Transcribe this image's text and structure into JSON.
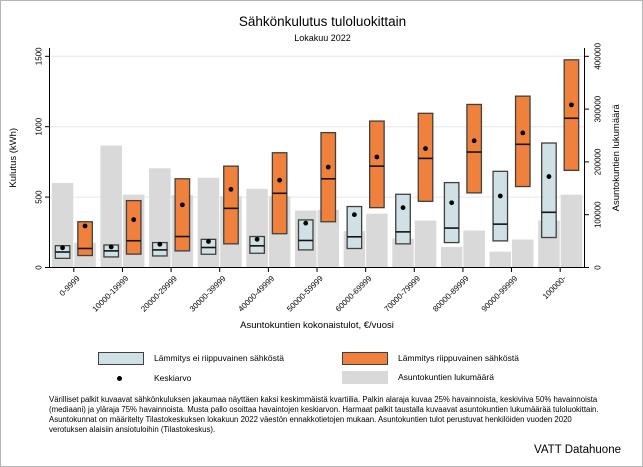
{
  "title": "Sähkönkulutus tuloluokittain",
  "subtitle": "Lokakuu 2022",
  "source_label": "VATT Datahuone",
  "footnote": "Värilliset palkit kuvaavat sähkönkuluksen jakaumaa näyttäen kaksi keskimmäistä kvartiilia. Palkin alaraja kuvaa 25% havainnoista, keskiviiva 50% havainnoista (mediaani) ja yläraja 75% havainnoista. Musta pallo osoittaa havaintojen keskiarvon. Harmaat palkit taustalla kuvaavat asuntokuntien lukumäärää tuloluokittain. Asuntokunnat on määritelty Tilastokeskuksen lokakuun 2022 väestön ennakkotietojen mukaan. Asuntokuntien tulot perustuvat henkilöiden vuoden 2020 verotuksen alaisiin ansiotuloihin (Tilastokeskus).",
  "legend": {
    "items": [
      {
        "label": "Lämmitys ei riippuvainen sähköstä",
        "swatch": "box-blue"
      },
      {
        "label": "Lämmitys riippuvainen sähköstä",
        "swatch": "box-orange"
      },
      {
        "label": "Keskiarvo",
        "swatch": "mean-dot"
      },
      {
        "label": "Asuntokuntien lukumäärä",
        "swatch": "bar-gray"
      }
    ]
  },
  "chart_data": {
    "type": "boxplot-with-background-bars",
    "title": "Sähkönkulutus tuloluokittain",
    "subtitle": "Lokakuu 2022",
    "xlabel": "Asuntokuntien kokonaistulot, €/vuosi",
    "ylabel_left": "Kulutus (kWh)",
    "ylabel_right": "Asuntokuntien lukumäärä",
    "ylim_left": [
      0,
      1500
    ],
    "yticks_left": [
      0,
      500,
      1000,
      1500
    ],
    "ylim_right": [
      0,
      400000
    ],
    "yticks_right": [
      0,
      100000,
      200000,
      300000,
      400000
    ],
    "gridlines_left": [
      500,
      1000,
      1500
    ],
    "legend_position": "bottom",
    "categories": [
      "0-9999",
      "10000-19999",
      "20000-29999",
      "30000-39999",
      "40000-49999",
      "50000-59999",
      "60000-69999",
      "70000-79999",
      "80000-89999",
      "90000-99999",
      "100000-"
    ],
    "series": [
      {
        "name": "Lämmitys ei riippuvainen sähköstä",
        "type": "box",
        "axis": "left",
        "fill": "#D0E1E5",
        "values": [
          {
            "p25": 65,
            "median": 110,
            "p75": 155,
            "mean": 140
          },
          {
            "p25": 75,
            "median": 118,
            "p75": 160,
            "mean": 146
          },
          {
            "p25": 82,
            "median": 125,
            "p75": 177,
            "mean": 165
          },
          {
            "p25": 94,
            "median": 142,
            "p75": 200,
            "mean": 185
          },
          {
            "p25": 101,
            "median": 154,
            "p75": 220,
            "mean": 200
          },
          {
            "p25": 125,
            "median": 192,
            "p75": 338,
            "mean": 315
          },
          {
            "p25": 135,
            "median": 218,
            "p75": 433,
            "mean": 375
          },
          {
            "p25": 168,
            "median": 253,
            "p75": 520,
            "mean": 425
          },
          {
            "p25": 177,
            "median": 280,
            "p75": 603,
            "mean": 460
          },
          {
            "p25": 189,
            "median": 308,
            "p75": 683,
            "mean": 508
          },
          {
            "p25": 213,
            "median": 392,
            "p75": 884,
            "mean": 646
          }
        ]
      },
      {
        "name": "Lämmitys riippuvainen sähköstä",
        "type": "box",
        "axis": "left",
        "fill": "#F0813C",
        "values": [
          {
            "p25": 85,
            "median": 135,
            "p75": 325,
            "mean": 295
          },
          {
            "p25": 95,
            "median": 190,
            "p75": 475,
            "mean": 340
          },
          {
            "p25": 118,
            "median": 220,
            "p75": 630,
            "mean": 445
          },
          {
            "p25": 168,
            "median": 420,
            "p75": 720,
            "mean": 555
          },
          {
            "p25": 240,
            "median": 527,
            "p75": 815,
            "mean": 620
          },
          {
            "p25": 325,
            "median": 630,
            "p75": 958,
            "mean": 713
          },
          {
            "p25": 425,
            "median": 720,
            "p75": 1040,
            "mean": 785
          },
          {
            "p25": 470,
            "median": 775,
            "p75": 1095,
            "mean": 845
          },
          {
            "p25": 530,
            "median": 820,
            "p75": 1158,
            "mean": 900
          },
          {
            "p25": 575,
            "median": 875,
            "p75": 1217,
            "mean": 956
          },
          {
            "p25": 690,
            "median": 1060,
            "p75": 1475,
            "mean": 1155
          }
        ]
      },
      {
        "name": "Asuntokuntien lukumäärä (lämmitys ei riippuvainen sähköstä)",
        "type": "bar",
        "axis": "right",
        "fill": "#D9D9D9",
        "values": [
          160000,
          231000,
          188000,
          170000,
          149000,
          108000,
          69000,
          55000,
          39000,
          30000,
          89000
        ]
      },
      {
        "name": "Asuntokuntien lukumäärä (lämmitys riippuvainen sähköstä)",
        "type": "bar",
        "axis": "right",
        "fill": "#D9D9D9",
        "values": [
          47000,
          138000,
          137000,
          135000,
          135000,
          109000,
          102000,
          89000,
          70000,
          53000,
          138000
        ]
      }
    ],
    "marker": {
      "name": "Keskiarvo",
      "shape": "dot",
      "color": "#000000"
    },
    "colors": {
      "box_nonelectric": "#D0E1E5",
      "box_electric": "#F0813C",
      "count_bar": "#D9D9D9",
      "box_border": "#404040",
      "gridline": "#E6E6E6"
    }
  }
}
